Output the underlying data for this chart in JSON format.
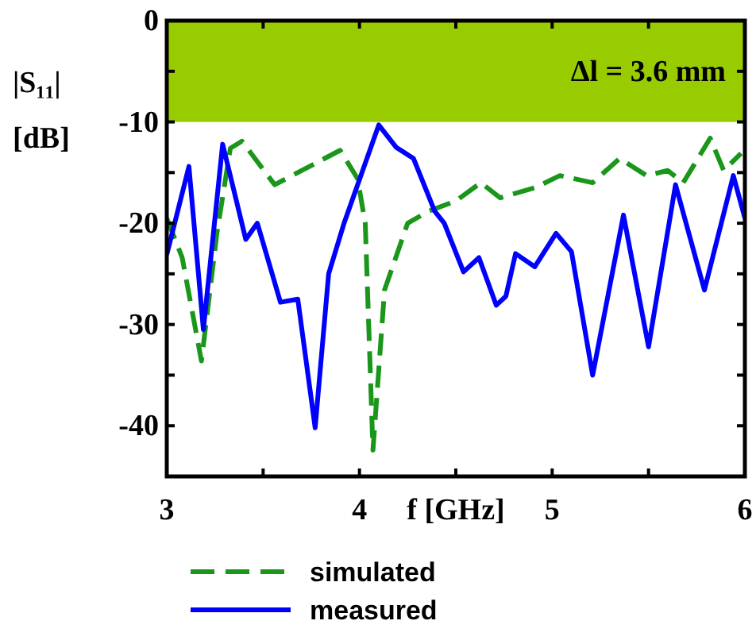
{
  "chart_data": {
    "type": "line",
    "xlabel": "f [GHz]",
    "ylabel": "|S₁₁| [dB]",
    "xlim": [
      3,
      6
    ],
    "xticks": [
      3,
      {
        "value": 3.5,
        "label": null
      },
      4,
      {
        "value": 4.5,
        "label": null
      },
      5,
      {
        "value": 5.5,
        "label": null
      },
      6
    ],
    "ylim": [
      -45,
      0
    ],
    "yticks": [
      0,
      {
        "value": -5,
        "label": null
      },
      -10,
      {
        "value": -15,
        "label": null
      },
      -20,
      {
        "value": -25,
        "label": null
      },
      -30,
      {
        "value": -35,
        "label": null
      },
      -40
    ],
    "bands": [
      {
        "axis": "y",
        "from": -10,
        "to": 0,
        "label": "Δl = 3.6 mm",
        "color": "#99cc00"
      }
    ],
    "legend": "bottom",
    "series": [
      {
        "name": "simulated",
        "color": "#1a961a",
        "line_style": "dashed",
        "x": [
          3.0,
          3.08,
          3.18,
          3.26,
          3.33,
          3.39,
          3.56,
          3.78,
          3.9,
          3.99,
          4.03,
          4.07,
          4.13,
          4.25,
          4.36,
          4.5,
          4.63,
          4.73,
          4.91,
          5.04,
          5.21,
          5.35,
          5.49,
          5.6,
          5.68,
          5.82,
          5.89,
          5.98
        ],
        "values": [
          -19.5,
          -23.4,
          -33.6,
          -21,
          -12.6,
          -11.9,
          -16.2,
          -14,
          -12.8,
          -15.6,
          -20,
          -42.4,
          -26.6,
          -20,
          -18.8,
          -17.8,
          -16,
          -17.5,
          -16.5,
          -15.3,
          -16,
          -13.6,
          -15.3,
          -14.8,
          -16,
          -11.6,
          -14.8,
          -13.1
        ]
      },
      {
        "name": "measured",
        "color": "#0000ff",
        "line_style": "solid",
        "x": [
          3.0,
          3.115,
          3.19,
          3.29,
          3.41,
          3.47,
          3.59,
          3.68,
          3.77,
          3.84,
          3.92,
          4.1,
          4.19,
          4.28,
          4.39,
          4.44,
          4.54,
          4.62,
          4.71,
          4.76,
          4.81,
          4.91,
          5.02,
          5.1,
          5.21,
          5.37,
          5.5,
          5.64,
          5.79,
          5.94,
          6.0
        ],
        "values": [
          -23.1,
          -14.4,
          -30.5,
          -12.2,
          -21.6,
          -20,
          -27.8,
          -27.5,
          -40.2,
          -25,
          -20,
          -10.3,
          -12.5,
          -13.6,
          -18.8,
          -20,
          -24.8,
          -23.4,
          -28.1,
          -27.2,
          -23,
          -24.3,
          -21,
          -22.8,
          -35,
          -19.2,
          -32.2,
          -16.2,
          -26.6,
          -15.3,
          -19.5
        ]
      }
    ]
  }
}
